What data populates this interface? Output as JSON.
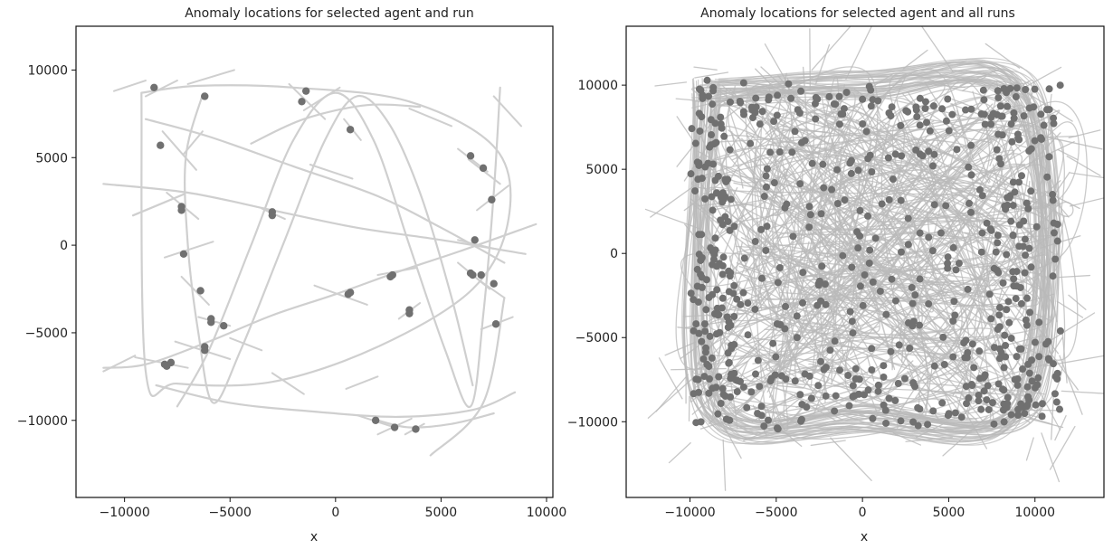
{
  "colors": {
    "track": "#cfcfcf",
    "track_dense": "#b9b9b9",
    "point": "#707070",
    "axes": "#111111"
  },
  "chart_data": [
    {
      "type": "scatter",
      "title": "Anomaly locations  for selected agent and run",
      "xlabel": "x",
      "ylabel": "",
      "xlim": [
        -12300,
        10300
      ],
      "ylim": [
        -14400,
        12500
      ],
      "xticks": [
        -10000,
        -5000,
        0,
        5000,
        10000
      ],
      "yticks": [
        -10000,
        -5000,
        0,
        5000,
        10000
      ],
      "xtick_labels": [
        "−10000",
        "−5000",
        "0",
        "5000",
        "10000"
      ],
      "ytick_labels": [
        "−10000",
        "−5000",
        "0",
        "5000",
        "10000"
      ],
      "grid": false,
      "legend": "none",
      "background_tracks": [
        {
          "x": [
            -9200,
            -6500,
            -2000,
            3500,
            7600,
            8200,
            6500,
            2000,
            -3000,
            -7500,
            -9000,
            -9200
          ],
          "y": [
            8700,
            9100,
            9000,
            8200,
            5500,
            1500,
            -2500,
            -5800,
            -7800,
            -7900,
            -7200,
            8700
          ]
        },
        {
          "x": [
            -6300,
            -7100,
            -7000,
            -6500,
            -5800,
            -4500,
            -2500,
            -500,
            1000,
            2500,
            4000,
            5500,
            6500
          ],
          "y": [
            8600,
            5000,
            0,
            -5000,
            -9000,
            -6000,
            0,
            6000,
            8500,
            7000,
            3000,
            -3000,
            -8000
          ]
        },
        {
          "x": [
            -7500,
            -6000,
            -4000,
            -2000,
            0,
            1800,
            3500,
            5200,
            6400,
            7000,
            7500,
            7800
          ],
          "y": [
            -9200,
            -6000,
            0,
            6000,
            8700,
            6000,
            0,
            -6000,
            -9200,
            -4000,
            3000,
            9000
          ]
        },
        {
          "x": [
            -11000,
            -9000,
            -6000,
            -3000,
            0,
            3000,
            6000,
            9500
          ],
          "y": [
            -7000,
            -6800,
            -5500,
            -4000,
            -2800,
            -1500,
            -300,
            1200
          ]
        },
        {
          "x": [
            -11000,
            -7000,
            -3000,
            1000,
            5000,
            9000
          ],
          "y": [
            3500,
            3000,
            2000,
            1000,
            300,
            -500
          ]
        },
        {
          "x": [
            -9000,
            -6000,
            -2000,
            2000,
            5000,
            8000
          ],
          "y": [
            7200,
            6200,
            4500,
            2800,
            1000,
            -1000
          ]
        },
        {
          "x": [
            2000,
            3500,
            5500,
            7500
          ],
          "y": [
            -10000,
            -10400,
            -10200,
            -9600
          ]
        },
        {
          "x": [
            -8500,
            -5000,
            -1000,
            3000,
            6500,
            8500
          ],
          "y": [
            -8000,
            -9000,
            -9500,
            -9800,
            -9400,
            -8400
          ]
        },
        {
          "x": [
            -4000,
            -1500,
            1500,
            4000
          ],
          "y": [
            5800,
            7200,
            8000,
            7900
          ]
        },
        {
          "x": [
            4500,
            7000,
            8000
          ],
          "y": [
            -12000,
            -9000,
            -3000
          ]
        },
        {
          "x": [
            -9600,
            -7200
          ],
          "y": [
            1700,
            2900
          ]
        }
      ],
      "heading_segments": [
        [
          -9000,
          8500,
          -7500,
          9400
        ],
        [
          -7000,
          9200,
          -4800,
          10000
        ],
        [
          -7200,
          5200,
          -6300,
          6500
        ],
        [
          -8200,
          6500,
          -6600,
          4300
        ],
        [
          -8000,
          3000,
          -6500,
          1500
        ],
        [
          -8100,
          -700,
          -5800,
          200
        ],
        [
          -7300,
          -1800,
          -6000,
          -3400
        ],
        [
          -6500,
          -4100,
          -5000,
          -4600
        ],
        [
          -7600,
          -5500,
          -5000,
          -6500
        ],
        [
          -9500,
          -6400,
          -7000,
          -7000
        ],
        [
          -1500,
          7700,
          200,
          9000
        ],
        [
          -2200,
          9200,
          -500,
          7200
        ],
        [
          400,
          7200,
          1200,
          6000
        ],
        [
          -3500,
          2100,
          -2400,
          1500
        ],
        [
          -1000,
          -2300,
          1500,
          -3400
        ],
        [
          2000,
          -1700,
          3800,
          -1300
        ],
        [
          3000,
          -4200,
          4000,
          -3300
        ],
        [
          5800,
          5500,
          7200,
          4200
        ],
        [
          6300,
          4900,
          7800,
          3500
        ],
        [
          6700,
          2000,
          8200,
          3400
        ],
        [
          5800,
          300,
          7500,
          -200
        ],
        [
          5800,
          -1000,
          7300,
          -2500
        ],
        [
          6800,
          -2000,
          8000,
          -3000
        ],
        [
          6900,
          -4800,
          8400,
          -4100
        ],
        [
          1000,
          -9700,
          2800,
          -10400
        ],
        [
          2000,
          -10800,
          3600,
          -9900
        ],
        [
          3300,
          -10800,
          4200,
          -10200
        ],
        [
          -11000,
          -7200,
          -9500,
          -6300
        ],
        [
          -5000,
          -5300,
          -3500,
          -6000
        ],
        [
          -3000,
          -7300,
          -1500,
          -8500
        ],
        [
          500,
          -8200,
          2000,
          -7500
        ],
        [
          3500,
          7800,
          5500,
          6800
        ],
        [
          -10500,
          8800,
          -9000,
          9400
        ],
        [
          7500,
          8500,
          8800,
          6800
        ],
        [
          -1200,
          4600,
          800,
          3800
        ]
      ],
      "points": [
        {
          "x": -8600,
          "y": 9000
        },
        {
          "x": -6200,
          "y": 8500
        },
        {
          "x": -1400,
          "y": 8800
        },
        {
          "x": -1600,
          "y": 8200
        },
        {
          "x": 700,
          "y": 6600
        },
        {
          "x": 6400,
          "y": 5100
        },
        {
          "x": 7000,
          "y": 4400
        },
        {
          "x": 7400,
          "y": 2600
        },
        {
          "x": -8300,
          "y": 5700
        },
        {
          "x": -7300,
          "y": 2200
        },
        {
          "x": -7300,
          "y": 2000
        },
        {
          "x": -3000,
          "y": 1900
        },
        {
          "x": -3000,
          "y": 1700
        },
        {
          "x": -7200,
          "y": -500
        },
        {
          "x": 6600,
          "y": 300
        },
        {
          "x": 6400,
          "y": -1600
        },
        {
          "x": 6500,
          "y": -1700
        },
        {
          "x": 6900,
          "y": -1700
        },
        {
          "x": 7500,
          "y": -2200
        },
        {
          "x": 2700,
          "y": -1700
        },
        {
          "x": 2600,
          "y": -1800
        },
        {
          "x": 700,
          "y": -2700
        },
        {
          "x": 600,
          "y": -2800
        },
        {
          "x": -6400,
          "y": -2600
        },
        {
          "x": -5900,
          "y": -4200
        },
        {
          "x": -5900,
          "y": -4400
        },
        {
          "x": -5300,
          "y": -4600
        },
        {
          "x": 3500,
          "y": -3700
        },
        {
          "x": 3500,
          "y": -3900
        },
        {
          "x": 7600,
          "y": -4500
        },
        {
          "x": -6200,
          "y": -5800
        },
        {
          "x": -6200,
          "y": -6000
        },
        {
          "x": -7800,
          "y": -6700
        },
        {
          "x": -8100,
          "y": -6800
        },
        {
          "x": -8000,
          "y": -6900
        },
        {
          "x": 1900,
          "y": -10000
        },
        {
          "x": 2800,
          "y": -10400
        },
        {
          "x": 3800,
          "y": -10500
        }
      ]
    },
    {
      "type": "scatter",
      "title": "Anomaly locations for selected agent and all runs",
      "xlabel": "x",
      "ylabel": "",
      "xlim": [
        -13700,
        14000
      ],
      "ylim": [
        -14500,
        13500
      ],
      "xticks": [
        -10000,
        -5000,
        0,
        5000,
        10000
      ],
      "yticks": [
        -10000,
        -5000,
        0,
        5000,
        10000
      ],
      "xtick_labels": [
        "−10000",
        "−5000",
        "0",
        "5000",
        "10000"
      ],
      "ytick_labels": [
        "−10000",
        "−5000",
        "0",
        "5000",
        "10000"
      ],
      "grid": false,
      "legend": "none",
      "point_region": {
        "x": [
          -10000,
          11500
        ],
        "y": [
          -10500,
          10300
        ]
      },
      "note_density": "dense overlapping gray trajectories and several hundred anomaly points filling a square region"
    }
  ]
}
